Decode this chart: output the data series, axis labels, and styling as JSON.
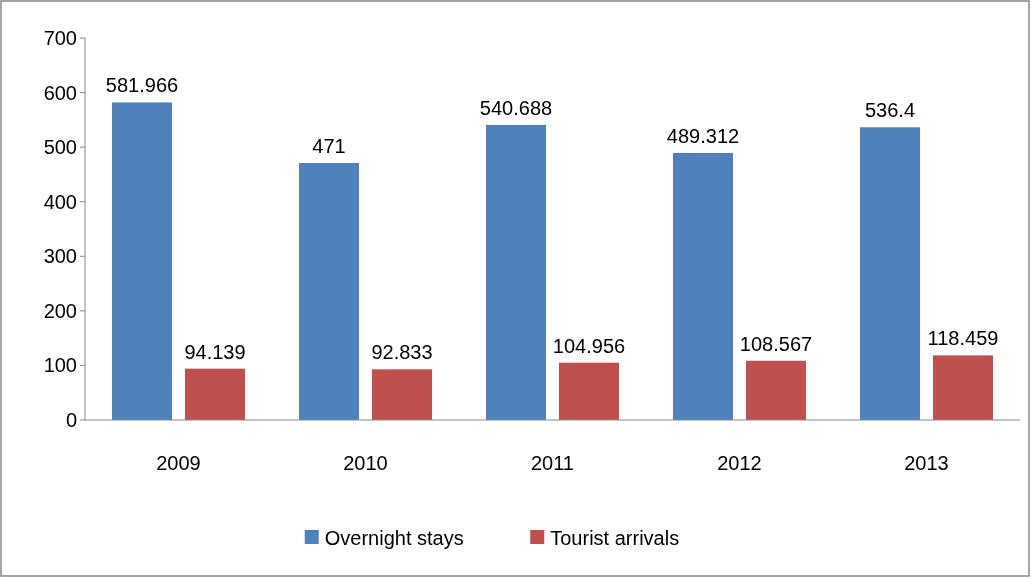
{
  "chart_data": {
    "type": "bar",
    "categories": [
      "2009",
      "2010",
      "2011",
      "2012",
      "2013"
    ],
    "series": [
      {
        "name": "Overnight stays",
        "color": "#4f81bd",
        "values": [
          581.966,
          471,
          540.688,
          489.312,
          536.4
        ]
      },
      {
        "name": "Tourist arrivals",
        "color": "#c0504d",
        "values": [
          94.139,
          92.833,
          104.956,
          108.567,
          118.459
        ]
      }
    ],
    "ylim": [
      0,
      700
    ],
    "yticks": [
      0,
      100,
      200,
      300,
      400,
      500,
      600,
      700
    ],
    "data_labels": true,
    "legend": "bottom",
    "grid": false
  }
}
